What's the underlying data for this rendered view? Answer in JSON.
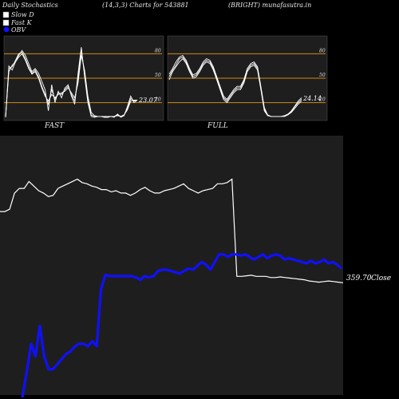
{
  "header": {
    "left": "Daily Stochastics",
    "params": "(14,3,3) Charts for 543881",
    "symbol": "(BRIGHT) munafasutra.in"
  },
  "legend": {
    "slow_d": "Slow  D",
    "fast_k": "Fast K",
    "obv": "OBV"
  },
  "colors": {
    "background": "#000000",
    "panel": "#1e1e1e",
    "grid": "#cc8a1a",
    "line": "#ffffff",
    "obv": "#1010ff"
  },
  "chart_data": [
    {
      "type": "line",
      "panel": "stochastic",
      "caption": "FAST",
      "ylim": [
        0,
        100
      ],
      "levels": [
        20,
        50,
        80
      ],
      "level_labels": [
        "20",
        "50",
        "80"
      ],
      "reading": "23.07",
      "series": [
        {
          "values": [
            2,
            65,
            60,
            70,
            78,
            84,
            78,
            68,
            58,
            62,
            56,
            46,
            36,
            10,
            42,
            20,
            34,
            26,
            38,
            42,
            28,
            18,
            56,
            88,
            52,
            20,
            3,
            2,
            3,
            3,
            2,
            2,
            3,
            2,
            6,
            2,
            4,
            15,
            28,
            20,
            23
          ]
        },
        {
          "values": [
            2,
            62,
            64,
            72,
            80,
            82,
            74,
            64,
            56,
            60,
            52,
            40,
            30,
            18,
            36,
            24,
            32,
            30,
            36,
            40,
            30,
            22,
            50,
            84,
            56,
            24,
            5,
            3,
            3,
            3,
            3,
            2,
            3,
            3,
            5,
            3,
            5,
            13,
            25,
            22,
            23
          ]
        },
        {
          "values": [
            2,
            58,
            66,
            70,
            76,
            80,
            72,
            62,
            55,
            58,
            50,
            38,
            28,
            22,
            30,
            26,
            30,
            32,
            34,
            38,
            32,
            26,
            44,
            78,
            60,
            28,
            8,
            4,
            3,
            3,
            3,
            3,
            3,
            3,
            4,
            3,
            5,
            11,
            22,
            23,
            23
          ]
        }
      ]
    },
    {
      "type": "line",
      "panel": "stochastic",
      "caption": "FULL",
      "ylim": [
        0,
        100
      ],
      "levels": [
        20,
        50,
        80
      ],
      "level_labels": [
        "20",
        "50",
        "80"
      ],
      "reading": "24.14",
      "series": [
        {
          "values": [
            55,
            62,
            70,
            76,
            78,
            72,
            62,
            54,
            56,
            62,
            70,
            74,
            72,
            64,
            52,
            40,
            28,
            24,
            30,
            36,
            40,
            40,
            48,
            62,
            68,
            70,
            64,
            40,
            14,
            5,
            3,
            3,
            3,
            3,
            4,
            6,
            10,
            16,
            22,
            26
          ]
        },
        {
          "values": [
            52,
            60,
            66,
            74,
            76,
            70,
            60,
            52,
            54,
            60,
            68,
            72,
            70,
            62,
            50,
            38,
            26,
            22,
            28,
            34,
            38,
            38,
            46,
            60,
            66,
            68,
            62,
            38,
            12,
            4,
            3,
            3,
            3,
            3,
            4,
            6,
            9,
            15,
            20,
            24
          ]
        },
        {
          "values": [
            48,
            58,
            64,
            70,
            74,
            68,
            58,
            50,
            52,
            58,
            66,
            70,
            68,
            60,
            48,
            36,
            24,
            20,
            26,
            32,
            36,
            36,
            44,
            58,
            64,
            66,
            60,
            36,
            10,
            4,
            3,
            3,
            3,
            3,
            3,
            5,
            8,
            13,
            18,
            22
          ]
        }
      ]
    },
    {
      "type": "line",
      "panel": "price_obv",
      "close_value": "359.70",
      "close_label": "Close",
      "series": [
        {
          "name": "Close",
          "values": [
            0.62,
            0.62,
            0.64,
            0.78,
            0.82,
            0.82,
            0.88,
            0.84,
            0.8,
            0.78,
            0.75,
            0.76,
            0.82,
            0.84,
            0.86,
            0.88,
            0.9,
            0.87,
            0.86,
            0.84,
            0.83,
            0.81,
            0.81,
            0.79,
            0.8,
            0.78,
            0.78,
            0.76,
            0.78,
            0.81,
            0.83,
            0.8,
            0.78,
            0.78,
            0.8,
            0.81,
            0.82,
            0.84,
            0.86,
            0.82,
            0.8,
            0.78,
            0.8,
            0.81,
            0.82,
            0.86,
            0.86,
            0.87,
            0.9,
            0.06,
            0.06,
            0.065,
            0.07,
            0.06,
            0.06,
            0.06,
            0.05,
            0.05,
            0.055,
            0.05,
            0.045,
            0.04,
            0.035,
            0.03,
            0.02,
            0.015,
            0.01,
            0.015,
            0.02,
            0.015,
            0.01,
            0.005
          ]
        },
        {
          "name": "OBV",
          "values": [
            -0.8,
            -0.6,
            -0.38,
            -0.48,
            -0.24,
            -0.48,
            -0.58,
            -0.58,
            -0.54,
            -0.5,
            -0.46,
            -0.44,
            -0.4,
            -0.38,
            -0.38,
            -0.4,
            -0.36,
            -0.4,
            0.05,
            0.16,
            0.15,
            0.15,
            0.15,
            0.15,
            0.15,
            0.15,
            0.14,
            0.12,
            0.15,
            0.14,
            0.15,
            0.19,
            0.2,
            0.2,
            0.19,
            0.18,
            0.17,
            0.19,
            0.21,
            0.2,
            0.23,
            0.26,
            0.24,
            0.2,
            0.26,
            0.32,
            0.32,
            0.3,
            0.32,
            0.32,
            0.31,
            0.32,
            0.3,
            0.28,
            0.3,
            0.32,
            0.29,
            0.31,
            0.32,
            0.31,
            0.28,
            0.29,
            0.28,
            0.27,
            0.26,
            0.25,
            0.27,
            0.25,
            0.26,
            0.28,
            0.25,
            0.26,
            0.24,
            0.21
          ]
        }
      ]
    }
  ]
}
